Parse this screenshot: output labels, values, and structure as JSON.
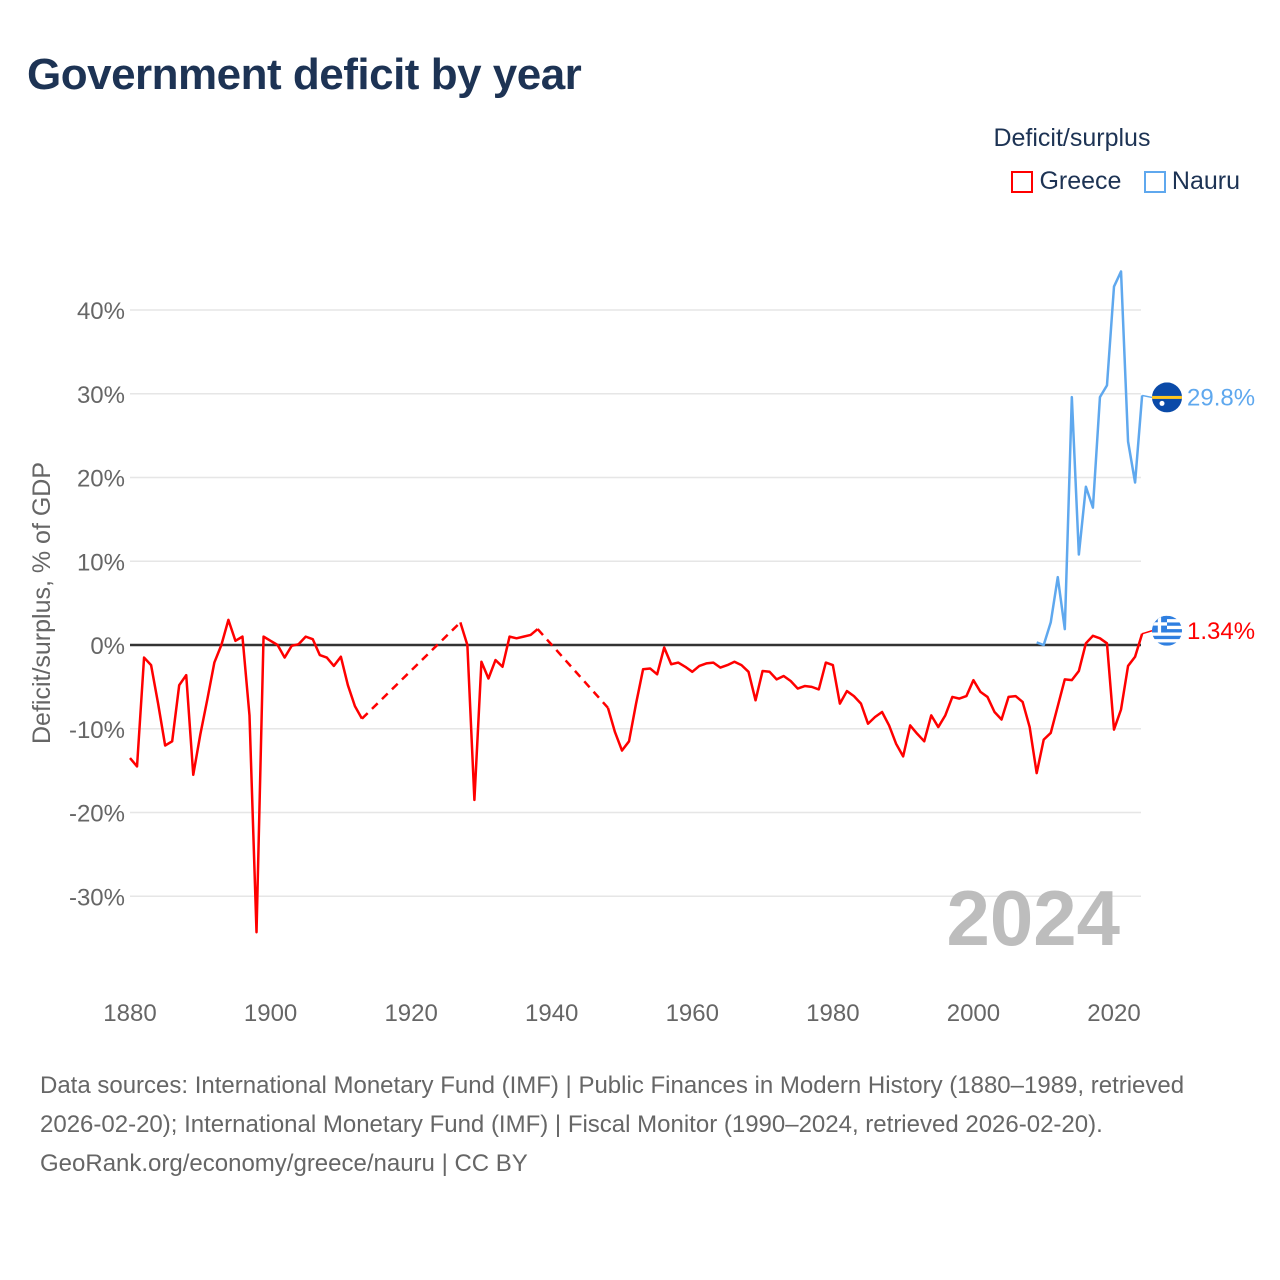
{
  "title": "Government deficit by year",
  "legend": {
    "title": "Deficit/surplus",
    "items": [
      {
        "label": "Greece",
        "color": "#ff0000"
      },
      {
        "label": "Nauru",
        "color": "#5fa8ee"
      }
    ]
  },
  "footer": {
    "sources": "Data sources: International Monetary Fund (IMF) | Public Finances in Modern History (1880–1989, retrieved 2026-02-20); International Monetary Fund (IMF) | Fiscal Monitor (1990–2024, retrieved 2026-02-20).",
    "credit": "GeoRank.org/economy/greece/nauru | CC BY"
  },
  "chart_data": {
    "type": "line",
    "title": "Government deficit by year",
    "xlabel": "",
    "ylabel": "Deficit/surplus, % of GDP",
    "xlim": [
      1880,
      2024
    ],
    "ylim": [
      -40,
      45
    ],
    "x_ticks": [
      1880,
      1900,
      1920,
      1940,
      1960,
      1980,
      2000,
      2020
    ],
    "x_tick_labels": [
      "1880",
      "1900",
      "1920",
      "1940",
      "1960",
      "1980",
      "2000",
      "2020"
    ],
    "y_ticks": [
      40,
      30,
      20,
      10,
      0,
      -10,
      -20,
      -30
    ],
    "y_tick_labels": [
      "40%",
      "30%",
      "20%",
      "10%",
      "0%",
      "-10%",
      "-20%",
      "-30%"
    ],
    "grid": true,
    "legend_position": "top-right",
    "year_watermark": "2024",
    "series": [
      {
        "name": "Greece",
        "color": "#ff0000",
        "end_label": "1.34%",
        "flag": "greece",
        "gaps": [
          [
            1913,
            1927
          ],
          [
            1938,
            1948
          ]
        ],
        "points": [
          [
            1880,
            -13.5
          ],
          [
            1881,
            -14.5
          ],
          [
            1882,
            -1.5
          ],
          [
            1883,
            -2.4
          ],
          [
            1884,
            -7
          ],
          [
            1885,
            -12
          ],
          [
            1886,
            -11.5
          ],
          [
            1887,
            -4.8
          ],
          [
            1888,
            -3.6
          ],
          [
            1889,
            -15.5
          ],
          [
            1890,
            -10.7
          ],
          [
            1891,
            -6.5
          ],
          [
            1892,
            -2.1
          ],
          [
            1893,
            0
          ],
          [
            1894,
            3.0
          ],
          [
            1895,
            0.5
          ],
          [
            1896,
            1.0
          ],
          [
            1897,
            -8.4
          ],
          [
            1898,
            -34.3
          ],
          [
            1899,
            1.0
          ],
          [
            1900,
            0.5
          ],
          [
            1901,
            0
          ],
          [
            1902,
            -1.5
          ],
          [
            1903,
            -0.1
          ],
          [
            1904,
            0.1
          ],
          [
            1905,
            1.0
          ],
          [
            1906,
            0.7
          ],
          [
            1907,
            -1.2
          ],
          [
            1908,
            -1.5
          ],
          [
            1909,
            -2.5
          ],
          [
            1910,
            -1.4
          ],
          [
            1911,
            -4.8
          ],
          [
            1912,
            -7.3
          ],
          [
            1913,
            -8.8
          ],
          [
            1927,
            2.7
          ],
          [
            1928,
            0
          ],
          [
            1929,
            -18.5
          ],
          [
            1930,
            -2
          ],
          [
            1931,
            -4
          ],
          [
            1932,
            -1.8
          ],
          [
            1933,
            -2.6
          ],
          [
            1934,
            1.0
          ],
          [
            1935,
            0.8
          ],
          [
            1936,
            1.0
          ],
          [
            1937,
            1.2
          ],
          [
            1938,
            1.9
          ],
          [
            1948,
            -7.5
          ],
          [
            1949,
            -10.4
          ],
          [
            1950,
            -12.6
          ],
          [
            1951,
            -11.5
          ],
          [
            1952,
            -7
          ],
          [
            1953,
            -2.9
          ],
          [
            1954,
            -2.8
          ],
          [
            1955,
            -3.5
          ],
          [
            1956,
            -0.3
          ],
          [
            1957,
            -2.3
          ],
          [
            1958,
            -2.1
          ],
          [
            1959,
            -2.6
          ],
          [
            1960,
            -3.2
          ],
          [
            1961,
            -2.5
          ],
          [
            1962,
            -2.2
          ],
          [
            1963,
            -2.1
          ],
          [
            1964,
            -2.7
          ],
          [
            1965,
            -2.4
          ],
          [
            1966,
            -2.0
          ],
          [
            1967,
            -2.4
          ],
          [
            1968,
            -3.2
          ],
          [
            1969,
            -6.6
          ],
          [
            1970,
            -3.1
          ],
          [
            1971,
            -3.2
          ],
          [
            1972,
            -4.1
          ],
          [
            1973,
            -3.7
          ],
          [
            1974,
            -4.3
          ],
          [
            1975,
            -5.2
          ],
          [
            1976,
            -4.9
          ],
          [
            1977,
            -5.0
          ],
          [
            1978,
            -5.3
          ],
          [
            1979,
            -2.1
          ],
          [
            1980,
            -2.4
          ],
          [
            1981,
            -7.0
          ],
          [
            1982,
            -5.5
          ],
          [
            1983,
            -6.1
          ],
          [
            1984,
            -7.0
          ],
          [
            1985,
            -9.4
          ],
          [
            1986,
            -8.6
          ],
          [
            1987,
            -8.0
          ],
          [
            1988,
            -9.6
          ],
          [
            1989,
            -11.8
          ],
          [
            1990,
            -13.3
          ],
          [
            1991,
            -9.6
          ],
          [
            1992,
            -10.6
          ],
          [
            1993,
            -11.5
          ],
          [
            1994,
            -8.4
          ],
          [
            1995,
            -9.8
          ],
          [
            1996,
            -8.4
          ],
          [
            1997,
            -6.2
          ],
          [
            1998,
            -6.4
          ],
          [
            1999,
            -6.1
          ],
          [
            2000,
            -4.2
          ],
          [
            2001,
            -5.6
          ],
          [
            2002,
            -6.2
          ],
          [
            2003,
            -8.0
          ],
          [
            2004,
            -8.9
          ],
          [
            2005,
            -6.2
          ],
          [
            2006,
            -6.1
          ],
          [
            2007,
            -6.8
          ],
          [
            2008,
            -9.8
          ],
          [
            2009,
            -15.3
          ],
          [
            2010,
            -11.3
          ],
          [
            2011,
            -10.5
          ],
          [
            2012,
            -7.3
          ],
          [
            2013,
            -4.1
          ],
          [
            2014,
            -4.2
          ],
          [
            2015,
            -3.1
          ],
          [
            2016,
            0.2
          ],
          [
            2017,
            1.1
          ],
          [
            2018,
            0.8
          ],
          [
            2019,
            0.2
          ],
          [
            2020,
            -10.1
          ],
          [
            2021,
            -7.7
          ],
          [
            2022,
            -2.5
          ],
          [
            2023,
            -1.4
          ],
          [
            2024,
            1.34
          ]
        ]
      },
      {
        "name": "Nauru",
        "color": "#5fa8ee",
        "end_label": "29.8%",
        "flag": "nauru",
        "gaps": [],
        "points": [
          [
            2009,
            0.3
          ],
          [
            2010,
            0
          ],
          [
            2011,
            2.7
          ],
          [
            2012,
            8.1
          ],
          [
            2013,
            1.9
          ],
          [
            2014,
            29.6
          ],
          [
            2015,
            10.8
          ],
          [
            2016,
            18.9
          ],
          [
            2017,
            16.4
          ],
          [
            2018,
            29.6
          ],
          [
            2019,
            31.0
          ],
          [
            2020,
            42.8
          ],
          [
            2021,
            44.6
          ],
          [
            2022,
            24.3
          ],
          [
            2023,
            19.4
          ],
          [
            2024,
            29.8
          ]
        ]
      }
    ]
  }
}
